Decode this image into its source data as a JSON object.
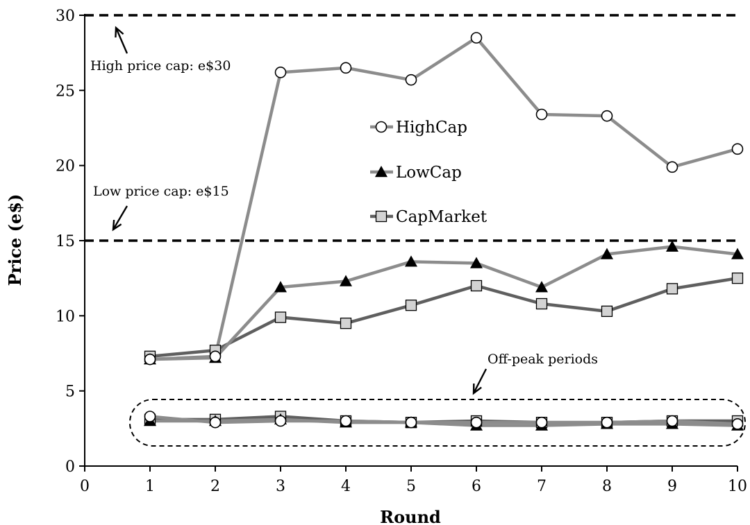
{
  "chart_data": {
    "type": "line",
    "xlabel": "Round",
    "ylabel": "Price (e$)",
    "xlim": [
      0,
      10
    ],
    "ylim": [
      0,
      30
    ],
    "x_ticks": [
      0,
      1,
      2,
      3,
      4,
      5,
      6,
      7,
      8,
      9,
      10
    ],
    "y_ticks": [
      0,
      5,
      10,
      15,
      20,
      25,
      30
    ],
    "grid": false,
    "legend_position": "center",
    "x": [
      1,
      2,
      3,
      4,
      5,
      6,
      7,
      8,
      9,
      10
    ],
    "series": [
      {
        "name": "HighCap",
        "color": "#8c8c8c",
        "marker": "open-circle",
        "values": [
          7.1,
          7.3,
          26.2,
          26.5,
          25.7,
          28.5,
          23.4,
          23.3,
          19.9,
          21.1
        ]
      },
      {
        "name": "LowCap",
        "color": "#8c8c8c",
        "marker": "filled-triangle",
        "values": [
          7.1,
          7.2,
          11.9,
          12.3,
          13.6,
          13.5,
          11.9,
          14.1,
          14.6,
          14.1
        ]
      },
      {
        "name": "CapMarket",
        "color": "#5f5f5f",
        "marker": "gray-square",
        "values": [
          7.3,
          7.7,
          9.9,
          9.5,
          10.7,
          12.0,
          10.8,
          10.3,
          11.8,
          12.5
        ]
      }
    ],
    "off_peak_series": [
      {
        "name": "HighCap",
        "values": [
          3.3,
          2.9,
          3.0,
          3.0,
          2.9,
          2.9,
          2.9,
          2.9,
          3.0,
          2.8
        ]
      },
      {
        "name": "LowCap",
        "values": [
          3.0,
          3.0,
          3.1,
          2.9,
          2.9,
          2.7,
          2.7,
          2.8,
          2.8,
          2.7
        ]
      },
      {
        "name": "CapMarket",
        "values": [
          3.1,
          3.1,
          3.3,
          3.0,
          2.9,
          3.0,
          2.9,
          2.9,
          3.0,
          3.0
        ]
      }
    ],
    "reference_lines": [
      {
        "y": 30,
        "label": "High price cap: e$30"
      },
      {
        "y": 15,
        "label": "Low price cap: e$15"
      }
    ],
    "annotations": [
      {
        "text": "Off-peak periods"
      }
    ]
  }
}
